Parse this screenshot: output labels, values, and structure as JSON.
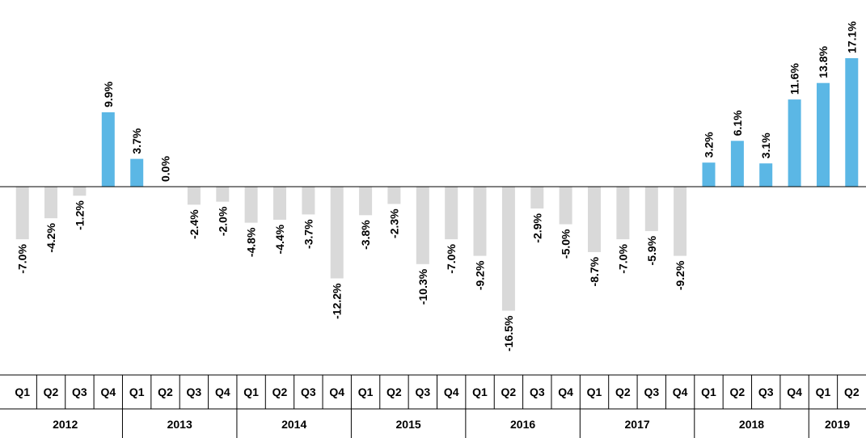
{
  "chart_data": {
    "type": "bar",
    "unit_suffix": "%",
    "categories": [
      "Q1",
      "Q2",
      "Q3",
      "Q4",
      "Q1",
      "Q2",
      "Q3",
      "Q4",
      "Q1",
      "Q2",
      "Q3",
      "Q4",
      "Q1",
      "Q2",
      "Q3",
      "Q4",
      "Q1",
      "Q2",
      "Q3",
      "Q4",
      "Q1",
      "Q2",
      "Q3",
      "Q4",
      "Q1",
      "Q2",
      "Q3",
      "Q4",
      "Q1",
      "Q2"
    ],
    "values": [
      -7.0,
      -4.2,
      -1.2,
      9.9,
      3.7,
      0.0,
      -2.4,
      -2.0,
      -4.8,
      -4.4,
      -3.7,
      -12.2,
      -3.8,
      -2.3,
      -10.3,
      -7.0,
      -9.2,
      -16.5,
      -2.9,
      -5.0,
      -8.7,
      -7.0,
      -5.9,
      -9.2,
      3.2,
      6.1,
      3.1,
      11.6,
      13.8,
      17.1
    ],
    "data_labels": [
      "-7.0%",
      "-4.2%",
      "-1.2%",
      "9.9%",
      "3.7%",
      "0.0%",
      "-2.4%",
      "-2.0%",
      "-4.8%",
      "-4.4%",
      "-3.7%",
      "-12.2%",
      "-3.8%",
      "-2.3%",
      "-10.3%",
      "-7.0%",
      "-9.2%",
      "-16.5%",
      "-2.9%",
      "-5.0%",
      "-8.7%",
      "-7.0%",
      "-5.9%",
      "-9.2%",
      "3.2%",
      "6.1%",
      "3.1%",
      "11.6%",
      "13.8%",
      "17.1%"
    ],
    "highlight_indices": [
      3,
      4,
      24,
      25,
      26,
      27,
      28,
      29
    ],
    "years": [
      {
        "label": "2012",
        "count": 4
      },
      {
        "label": "2013",
        "count": 4
      },
      {
        "label": "2014",
        "count": 4
      },
      {
        "label": "2015",
        "count": 4
      },
      {
        "label": "2016",
        "count": 4
      },
      {
        "label": "2017",
        "count": 4
      },
      {
        "label": "2018",
        "count": 4
      },
      {
        "label": "2019",
        "count": 2
      }
    ],
    "ylim": [
      -17.3,
      20.0
    ],
    "title": "",
    "xlabel": "",
    "ylabel": "",
    "grid": false,
    "legend": "none",
    "colors": {
      "highlight": "#5bb7e5",
      "default": "#d9d9d9",
      "axis": "#000000",
      "table_lines": "#000000"
    }
  }
}
